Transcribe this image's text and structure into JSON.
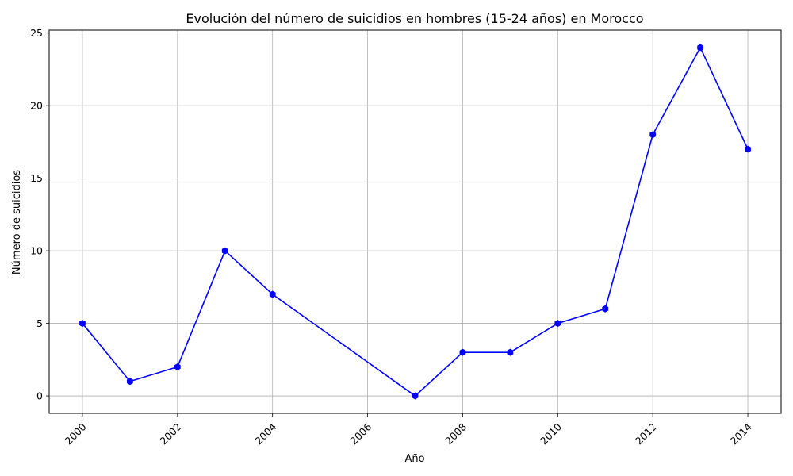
{
  "chart_data": {
    "type": "line",
    "title": "Evolución del número de suicidios en hombres (15-24 años) en Morocco",
    "xlabel": "Año",
    "ylabel": "Número de suicidios",
    "x": [
      2000,
      2001,
      2002,
      2003,
      2004,
      2007,
      2008,
      2009,
      2010,
      2011,
      2012,
      2013,
      2014
    ],
    "series": [
      {
        "values": [
          5,
          1,
          2,
          10,
          7,
          0,
          3,
          3,
          5,
          6,
          18,
          24,
          17
        ]
      }
    ],
    "xlim": [
      1999.3,
      2014.7
    ],
    "ylim": [
      -1.2,
      25.2
    ],
    "xticks": [
      2000,
      2002,
      2004,
      2006,
      2008,
      2010,
      2012,
      2014
    ],
    "yticks": [
      0,
      5,
      10,
      15,
      20,
      25
    ],
    "grid": true,
    "line_color": "#0000ff",
    "marker": "hexagon"
  }
}
